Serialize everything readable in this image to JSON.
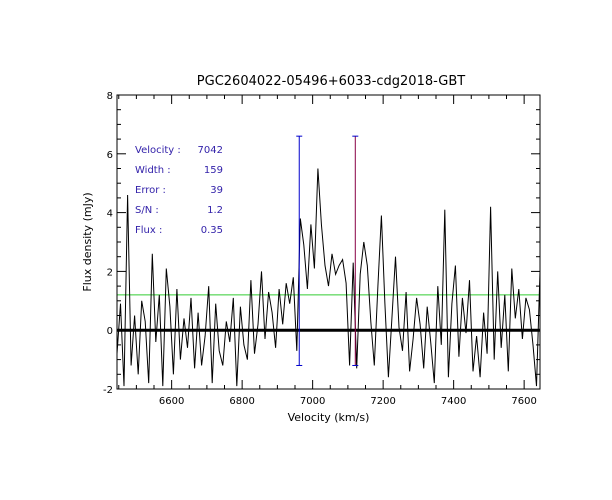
{
  "chart_data": {
    "type": "line",
    "title": "PGC2604022-05496+6033-cdg2018-GBT",
    "xlabel": "Velocity (km/s)",
    "ylabel": "Flux density (mJy)",
    "xlim": [
      6445,
      7645
    ],
    "ylim": [
      -2,
      8
    ],
    "xticks": [
      6600,
      6800,
      7000,
      7200,
      7400,
      7600
    ],
    "yticks": [
      -2,
      0,
      2,
      4,
      6,
      8
    ],
    "baseline": 0,
    "reference_level": 1.2,
    "markers": [
      {
        "name": "low-edge",
        "x": 6962,
        "y_top": 6.6,
        "y_bottom": -1.2
      },
      {
        "name": "high-edge",
        "x": 7121,
        "y_top": 6.6,
        "y_bottom": -1.2
      }
    ],
    "annotations": [
      {
        "label": "Velocity :",
        "value": "7042"
      },
      {
        "label": "Width :",
        "value": "159"
      },
      {
        "label": "Error :",
        "value": "39"
      },
      {
        "label": "S/N :",
        "value": "1.2"
      },
      {
        "label": "Flux :",
        "value": "0.35"
      }
    ],
    "series": [
      {
        "name": "spectrum",
        "x": [
          6445,
          6455,
          6465,
          6475,
          6485,
          6495,
          6505,
          6515,
          6525,
          6535,
          6545,
          6555,
          6565,
          6575,
          6585,
          6595,
          6605,
          6615,
          6625,
          6635,
          6645,
          6655,
          6665,
          6675,
          6685,
          6695,
          6705,
          6715,
          6725,
          6735,
          6745,
          6755,
          6765,
          6775,
          6785,
          6795,
          6805,
          6815,
          6825,
          6835,
          6845,
          6855,
          6865,
          6875,
          6885,
          6895,
          6905,
          6915,
          6925,
          6935,
          6945,
          6955,
          6965,
          6975,
          6985,
          6995,
          7005,
          7015,
          7025,
          7035,
          7045,
          7055,
          7065,
          7075,
          7085,
          7095,
          7105,
          7115,
          7125,
          7135,
          7145,
          7155,
          7165,
          7175,
          7185,
          7195,
          7205,
          7215,
          7225,
          7235,
          7245,
          7255,
          7265,
          7275,
          7285,
          7295,
          7305,
          7315,
          7325,
          7335,
          7345,
          7355,
          7365,
          7375,
          7385,
          7395,
          7405,
          7415,
          7425,
          7435,
          7445,
          7455,
          7465,
          7475,
          7485,
          7495,
          7505,
          7515,
          7525,
          7535,
          7545,
          7555,
          7565,
          7575,
          7585,
          7595,
          7605,
          7615,
          7625,
          7635,
          7645
        ],
        "y": [
          -0.8,
          0.9,
          -1.9,
          4.6,
          -1.2,
          0.5,
          -1.5,
          1.0,
          0.3,
          -1.8,
          2.6,
          -0.4,
          1.2,
          -1.9,
          2.1,
          0.8,
          -1.5,
          1.4,
          -1.0,
          0.4,
          -0.6,
          1.1,
          -1.3,
          0.6,
          -1.2,
          -0.2,
          1.5,
          -1.8,
          0.9,
          -0.7,
          -1.2,
          0.3,
          -0.4,
          1.1,
          -1.9,
          0.8,
          -0.5,
          -1.0,
          1.7,
          -0.8,
          0.2,
          2.0,
          -0.3,
          1.3,
          0.6,
          -0.6,
          1.4,
          0.2,
          1.6,
          0.9,
          1.8,
          -0.7,
          3.8,
          2.9,
          1.4,
          3.6,
          2.1,
          5.5,
          3.6,
          2.2,
          1.5,
          2.6,
          1.9,
          2.2,
          2.4,
          1.6,
          -1.2,
          2.3,
          -1.3,
          1.9,
          3.0,
          2.2,
          0.3,
          -1.2,
          1.5,
          3.9,
          0.9,
          -1.6,
          0.4,
          2.5,
          0.1,
          -0.7,
          1.3,
          -1.4,
          -0.3,
          1.1,
          0.2,
          -1.3,
          0.8,
          -0.4,
          -1.8,
          1.5,
          -0.5,
          4.1,
          -1.6,
          0.9,
          2.2,
          -0.9,
          1.1,
          -0.1,
          1.7,
          -1.4,
          -0.2,
          -1.6,
          0.6,
          -0.8,
          4.2,
          -1.0,
          2.0,
          -0.6,
          1.2,
          -1.4,
          2.1,
          0.4,
          1.4,
          -0.3,
          1.1,
          0.7,
          -0.5,
          -1.9,
          2.0
        ]
      }
    ]
  }
}
